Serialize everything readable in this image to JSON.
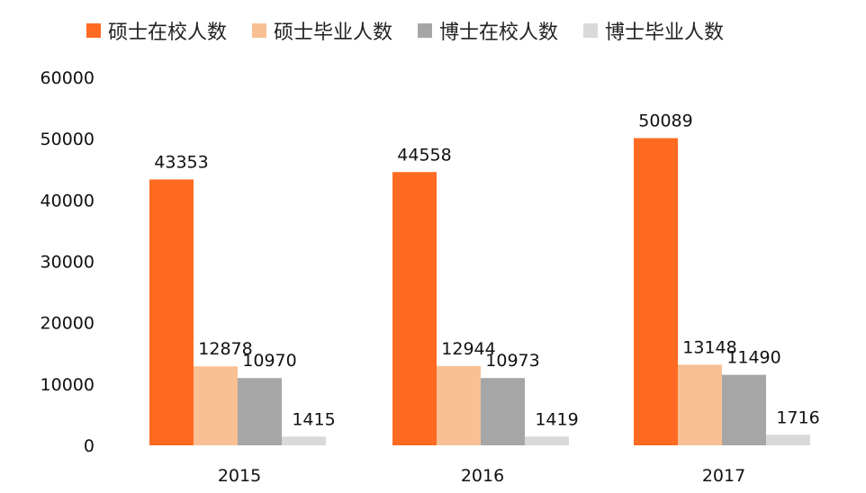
{
  "chart_data": {
    "type": "bar",
    "categories": [
      "2015",
      "2016",
      "2017"
    ],
    "series": [
      {
        "name": "硕士在校人数",
        "color": "#FF6A22",
        "values": [
          43353,
          44558,
          50089
        ]
      },
      {
        "name": "硕士毕业人数",
        "color": "#F8C094",
        "values": [
          12878,
          12944,
          13148
        ]
      },
      {
        "name": "博士在校人数",
        "color": "#A6A6A6",
        "values": [
          10970,
          10973,
          11490
        ]
      },
      {
        "name": "博士毕业人数",
        "color": "#D9D9D9",
        "values": [
          1415,
          1419,
          1716
        ]
      }
    ],
    "ylim": [
      0,
      60000
    ],
    "yticks": [
      "0",
      "10000",
      "20000",
      "30000",
      "40000",
      "50000",
      "60000"
    ],
    "grid": false,
    "legend_position": "top"
  }
}
